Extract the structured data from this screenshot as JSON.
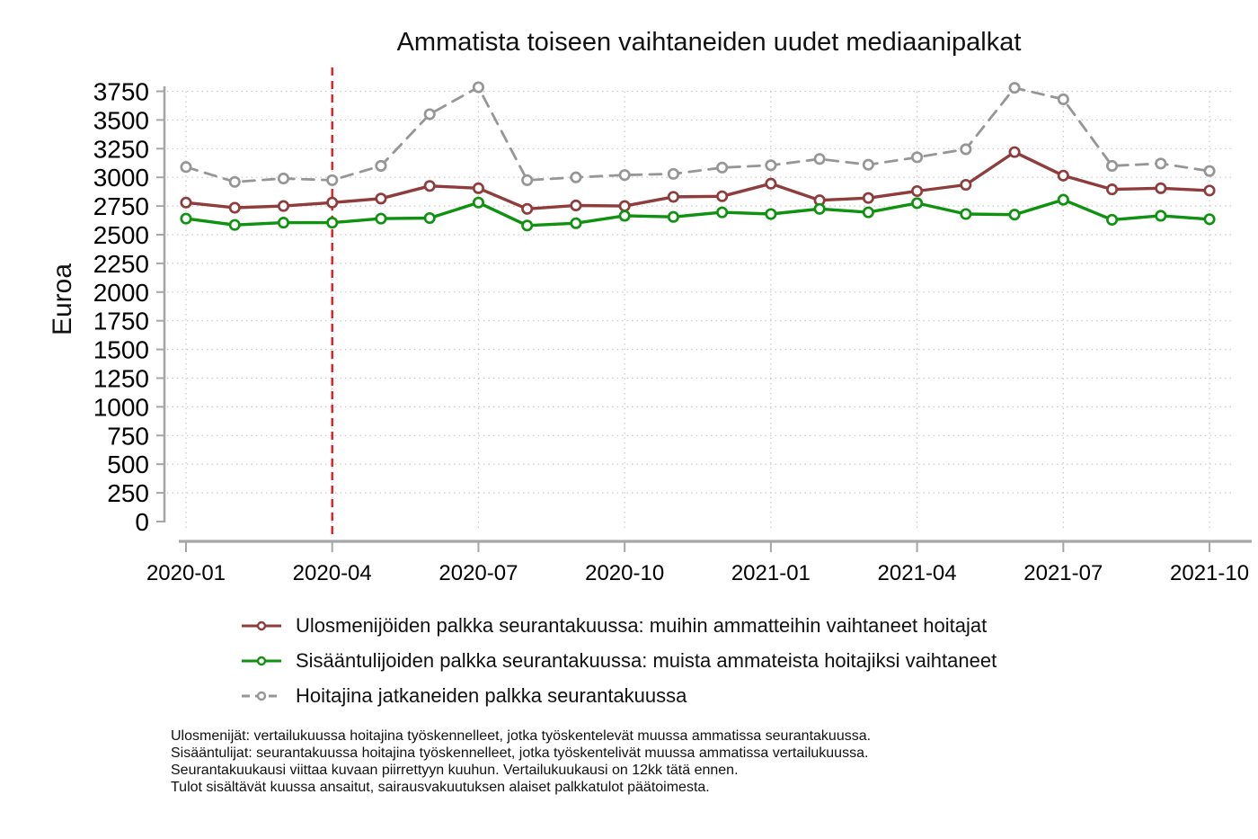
{
  "reference_line": {
    "month": "2020-04",
    "color": "#e8191c",
    "style": "dashed"
  },
  "footnotes": [
    "Ulosmenijät: vertailukuussa hoitajina työskennelleet, jotka työskentelevät muussa ammatissa seurantakuussa.",
    "Sisääntulijat: seurantakuussa hoitajina työskennelleet, jotka työskentelivät muussa ammatissa vertailukuussa.",
    "Seurantakuukausi viittaa kuvaan piirrettyyn kuuhun. Vertailukuukausi on 12kk tätä ennen.",
    "Tulot sisältävät kuussa ansaitut, sairausvakuutuksen alaiset palkkatulot päätoimesta."
  ],
  "chart_data": {
    "type": "line",
    "title": "Ammatista toiseen vaihtaneiden uudet mediaanipalkat",
    "xlabel": "",
    "ylabel": "Euroa",
    "ylim": [
      0,
      3750
    ],
    "y_tick_step": 250,
    "x_tick_every": 3,
    "grid": true,
    "legend_position": "bottom-left",
    "x": [
      "2020-01",
      "2020-02",
      "2020-03",
      "2020-04",
      "2020-05",
      "2020-06",
      "2020-07",
      "2020-08",
      "2020-09",
      "2020-10",
      "2020-11",
      "2020-12",
      "2021-01",
      "2021-02",
      "2021-03",
      "2021-04",
      "2021-05",
      "2021-06",
      "2021-07",
      "2021-08",
      "2021-09",
      "2021-10"
    ],
    "series": [
      {
        "name": "Ulosmenijöiden palkka seurantakuussa: muihin ammatteihin vaihtaneet hoitajat",
        "color": "#8e3d3c",
        "line_style": "solid",
        "marker": "open-circle",
        "values": [
          2780,
          2735,
          2750,
          2780,
          2815,
          2925,
          2905,
          2725,
          2755,
          2750,
          2830,
          2835,
          2945,
          2800,
          2820,
          2880,
          2935,
          3220,
          3015,
          2895,
          2905,
          2885
        ]
      },
      {
        "name": "Sisääntulijoiden palkka seurantakuussa: muista ammateista hoitajiksi vaihtaneet",
        "color": "#0f9210",
        "line_style": "solid",
        "marker": "open-circle",
        "values": [
          2640,
          2585,
          2605,
          2605,
          2640,
          2645,
          2780,
          2580,
          2600,
          2665,
          2655,
          2695,
          2680,
          2725,
          2695,
          2775,
          2680,
          2675,
          2805,
          2630,
          2665,
          2635
        ]
      },
      {
        "name": "Hoitajina jatkaneiden palkka seurantakuussa",
        "color": "#969696",
        "line_style": "dashed",
        "marker": "open-circle",
        "values": [
          3090,
          2960,
          2990,
          2975,
          3100,
          3550,
          3785,
          2975,
          3000,
          3020,
          3030,
          3085,
          3105,
          3160,
          3110,
          3175,
          3245,
          3780,
          3680,
          3100,
          3120,
          3055
        ]
      }
    ]
  }
}
